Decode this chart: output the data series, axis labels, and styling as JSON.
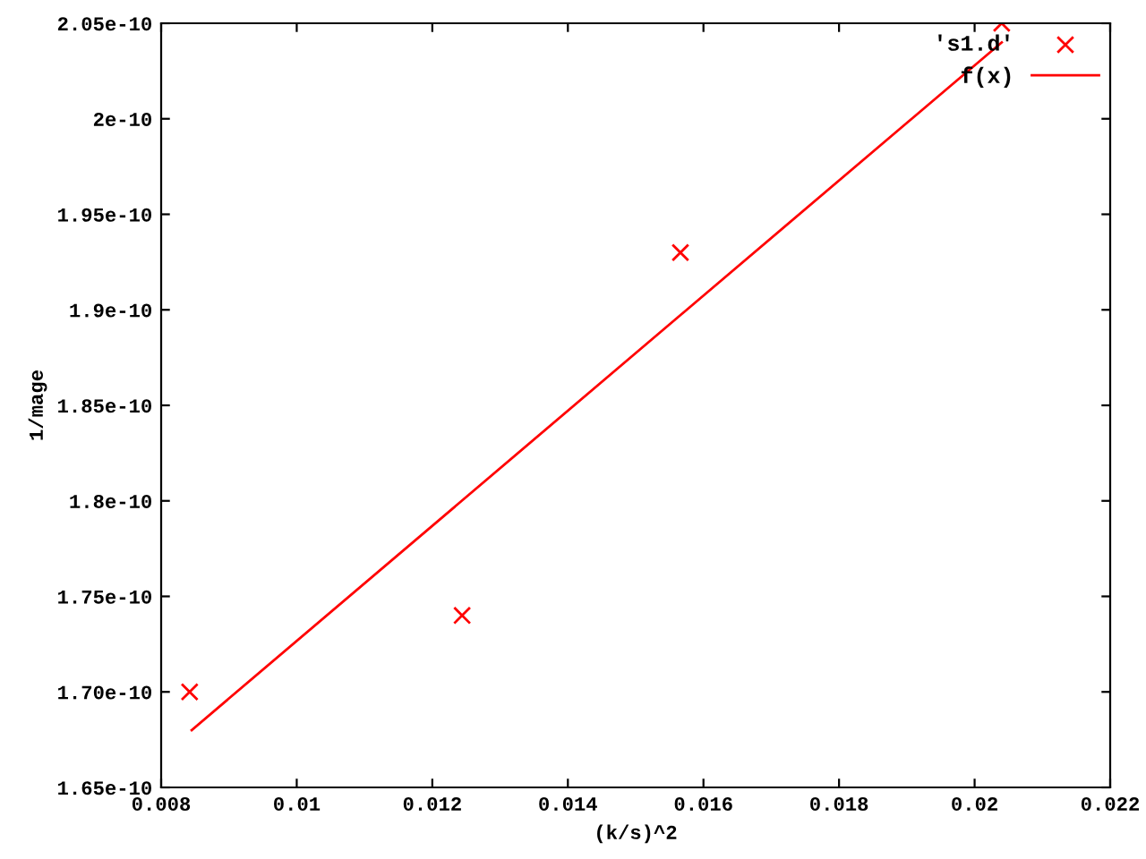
{
  "chart_data": {
    "type": "scatter",
    "xlabel": "(k/s)^2",
    "ylabel": "1/mage",
    "series": [
      {
        "name": "'s1.d'",
        "color": "#ff0000",
        "marker": "cross",
        "x": [
          0.00842,
          0.01244,
          0.01566,
          0.0204
        ],
        "values": [
          1.7e-10,
          1.74e-10,
          1.93e-10,
          2.05e-10
        ]
      },
      {
        "name": "f(x)",
        "type": "line",
        "color": "#ff0000",
        "line_style": "solid",
        "marker": "none",
        "x": [
          0.00845,
          0.0204
        ],
        "values": [
          1.68e-10,
          2.04e-10
        ]
      }
    ],
    "xlim": [
      0.008,
      0.022
    ],
    "xticks": [
      0.008,
      0.01,
      0.012,
      0.014,
      0.016,
      0.018,
      0.02,
      0.022
    ],
    "ylim": [
      1.65e-10,
      2.05e-10
    ],
    "yticks": [
      {
        "value": 1.65e-10,
        "label": "1.65e-10"
      },
      {
        "value": 1.7e-10,
        "label": "1.70e-10"
      },
      {
        "value": 1.75e-10,
        "label": "1.75e-10"
      },
      {
        "value": 1.8e-10,
        "label": "1.8e-10"
      },
      {
        "value": 1.85e-10,
        "label": "1.85e-10"
      },
      {
        "value": 1.9e-10,
        "label": "1.9e-10"
      },
      {
        "value": 1.95e-10,
        "label": "1.95e-10"
      },
      {
        "value": 2e-10,
        "label": "2e-10"
      },
      {
        "value": 2.05e-10,
        "label": "2.05e-10"
      }
    ],
    "grid": false,
    "legend": "top right"
  }
}
